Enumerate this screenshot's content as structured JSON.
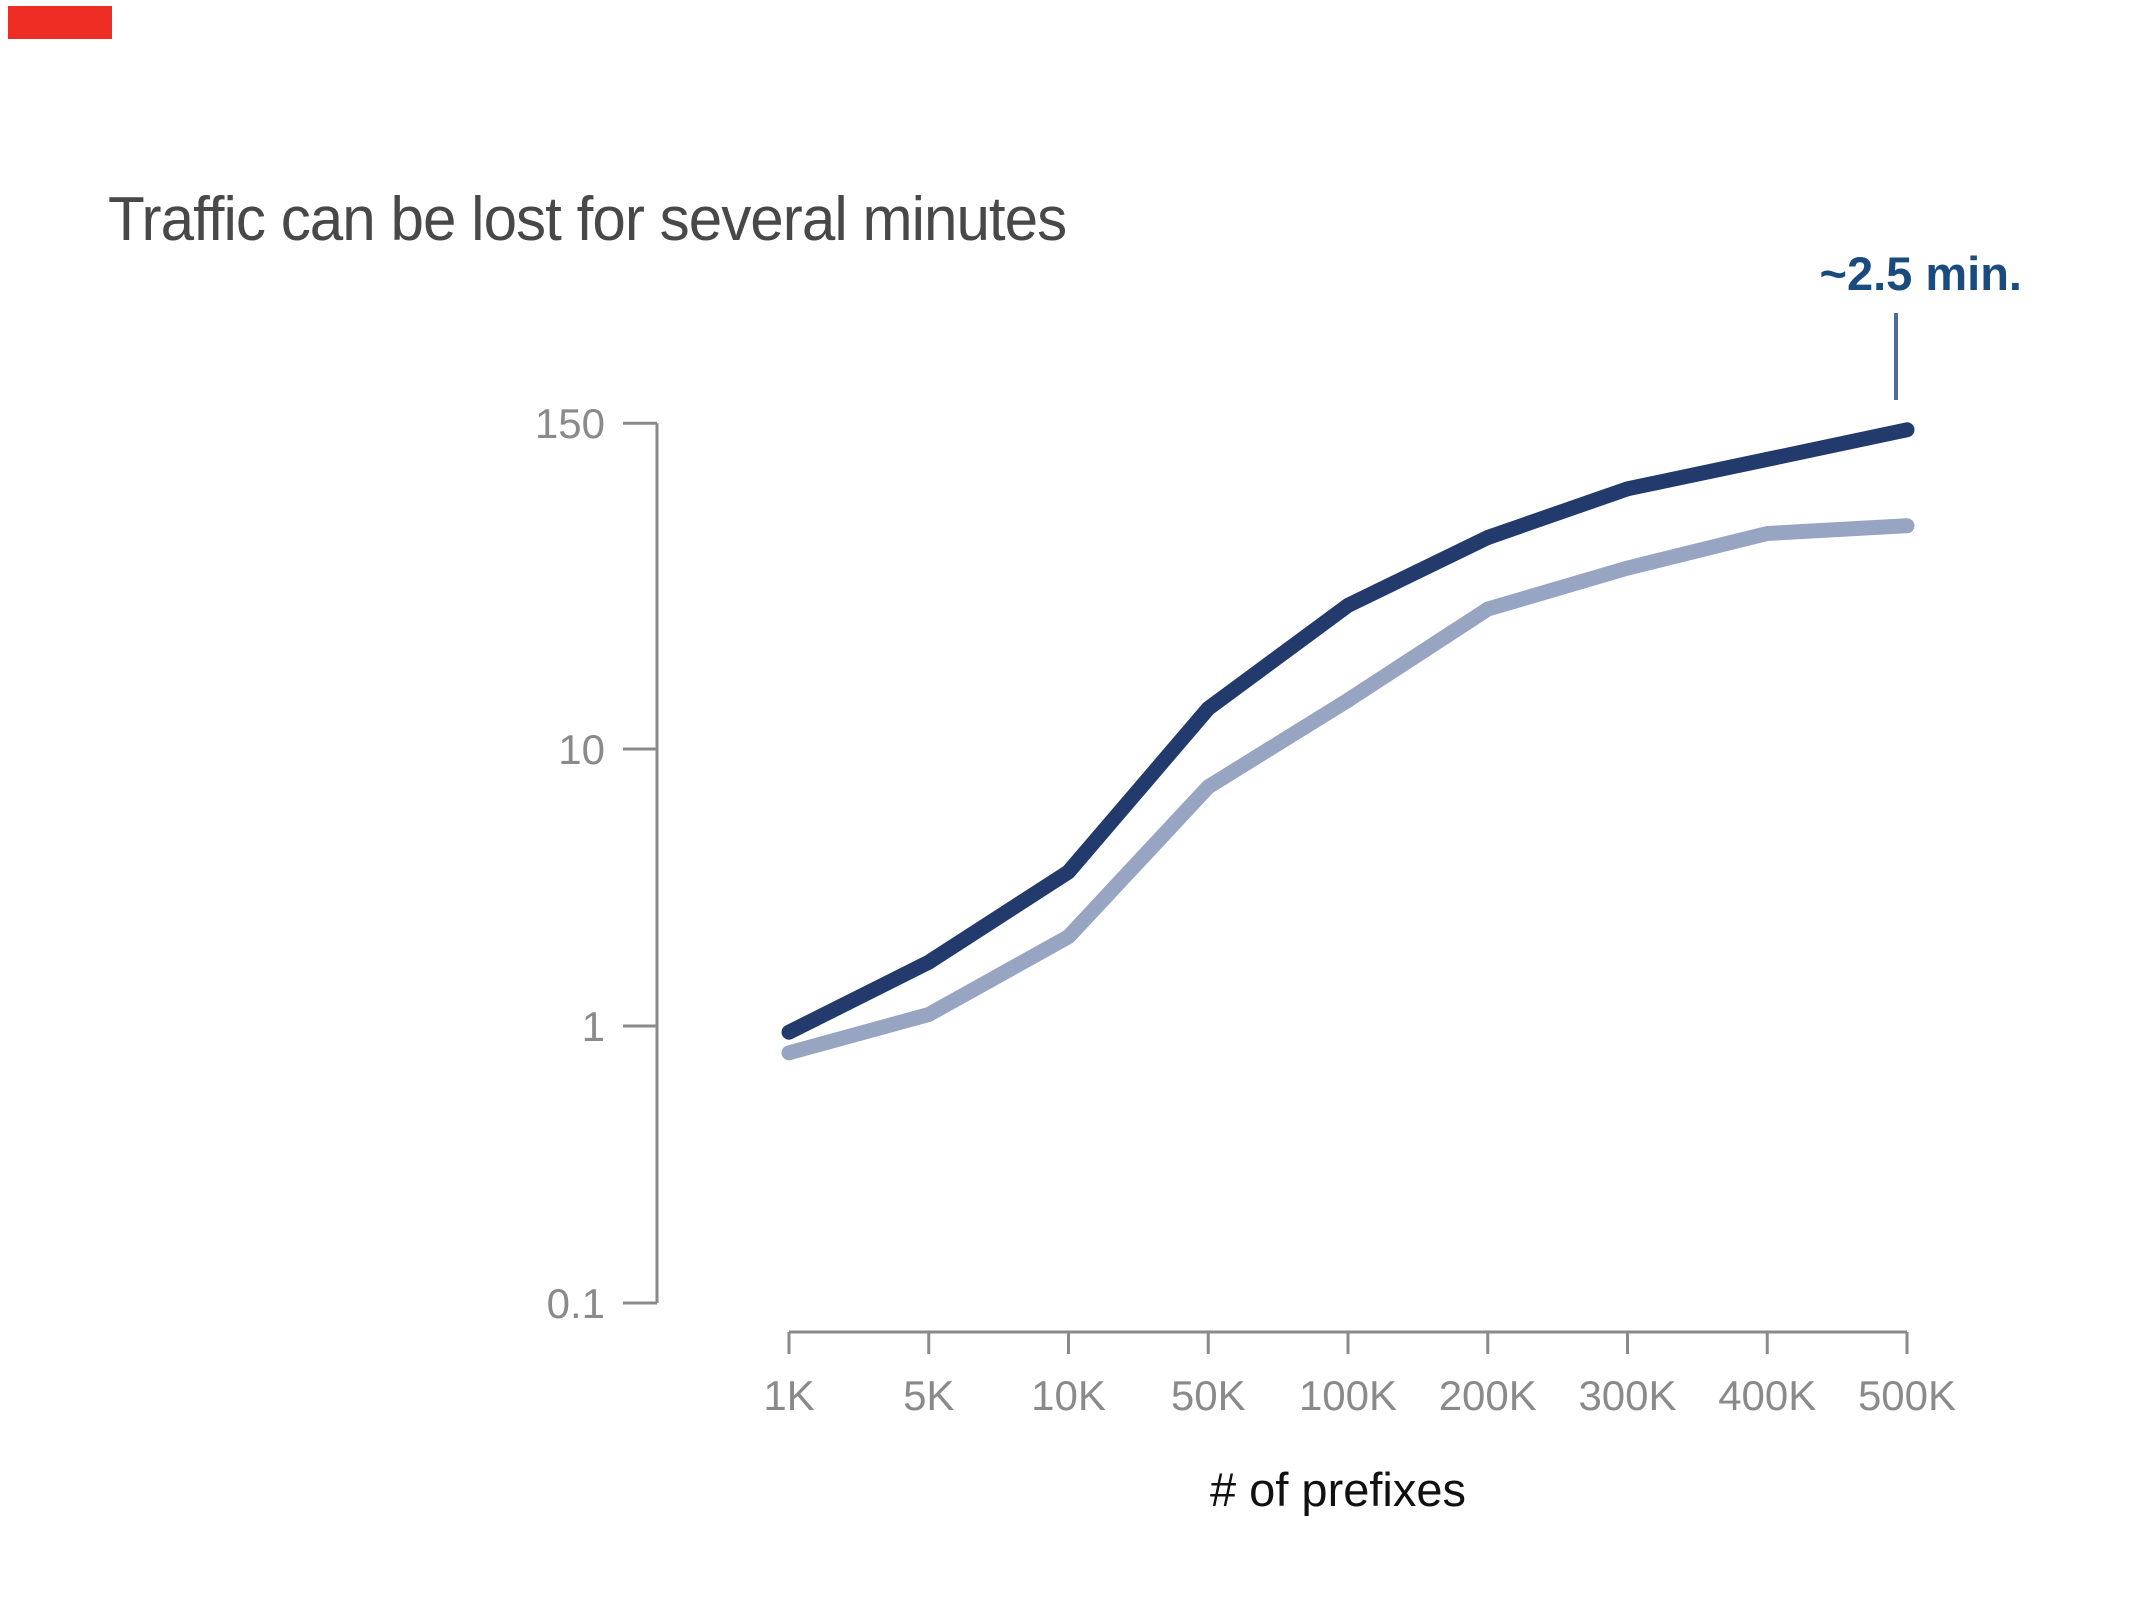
{
  "page": {
    "title": "Traffic can be lost for several minutes"
  },
  "decorations": {
    "red_bar_color": "#ee2d24"
  },
  "chart_data": {
    "type": "line",
    "title": "Traffic can be lost for several minutes",
    "xlabel": "# of prefixes",
    "ylabel": "",
    "y_scale": "log",
    "ylim": [
      0.1,
      150
    ],
    "grid": false,
    "legend": "none",
    "categories": [
      "1K",
      "5K",
      "10K",
      "50K",
      "100K",
      "200K",
      "300K",
      "400K",
      "500K"
    ],
    "series": [
      {
        "name": "dark-navy-line",
        "color": "#223a6c",
        "values": [
          0.95,
          1.7,
          3.6,
          14,
          33,
          58,
          87,
          111,
          142
        ]
      },
      {
        "name": "light-blue-line",
        "color": "#97a5c2",
        "values": [
          0.8,
          1.1,
          2.1,
          7.3,
          15,
          32,
          45,
          60,
          64
        ]
      }
    ],
    "yticks": [
      150,
      10,
      1,
      0.1
    ],
    "ytick_labels": [
      "150",
      "10",
      "1",
      "0.1"
    ],
    "annotation": {
      "text": "~2.5 min.",
      "series": "dark-navy-line",
      "at_category": "500K",
      "text_color": "#1a4b7f",
      "pointer_color": "#4a6b9d"
    },
    "axis_color": "#8a8a8a",
    "tick_label_color": "#8a8a8a"
  }
}
